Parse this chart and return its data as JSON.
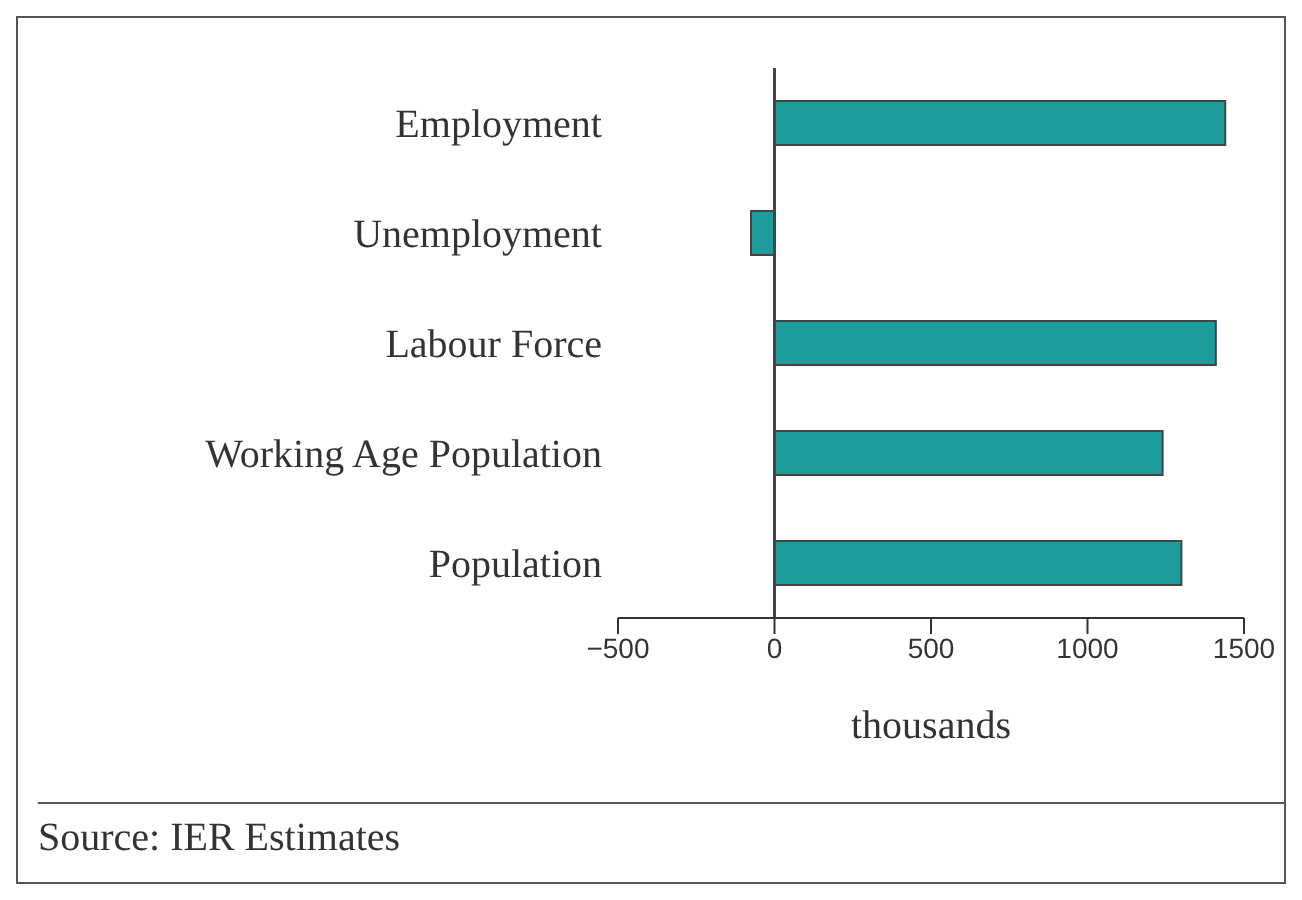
{
  "chart_data": {
    "type": "bar",
    "orientation": "horizontal",
    "categories": [
      "Employment",
      "Unemployment",
      "Labour Force",
      "Working Age Population",
      "Population"
    ],
    "values": [
      1440,
      -75,
      1410,
      1240,
      1300
    ],
    "color": "#1e9b9b",
    "xlim": [
      -500,
      1500
    ],
    "xticks": [
      -500,
      0,
      500,
      1000,
      1500
    ],
    "xlabel": "thousands",
    "annotations": [
      "Source: IER Estimates"
    ]
  }
}
